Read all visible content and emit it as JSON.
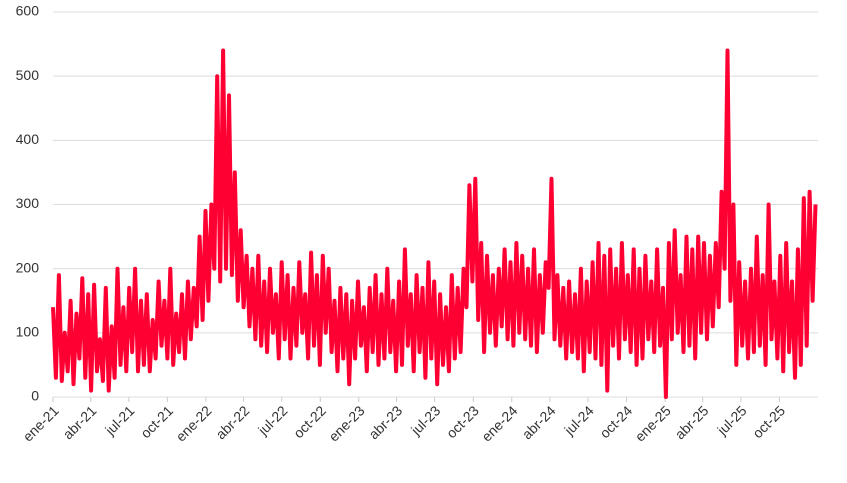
{
  "chart_data": {
    "type": "line",
    "x": [
      0,
      7,
      14,
      21,
      28,
      35,
      42,
      49,
      56,
      63,
      70,
      77,
      84,
      91,
      98,
      105,
      112,
      119,
      126,
      133,
      140,
      147,
      154,
      161,
      168,
      175,
      182,
      189,
      196,
      203,
      210,
      217,
      224,
      231,
      238,
      245,
      252,
      259,
      266,
      273,
      280,
      287,
      294,
      301,
      308,
      315,
      322,
      329,
      336,
      343,
      350,
      357,
      364,
      371,
      378,
      385,
      392,
      399,
      406,
      413,
      420,
      427,
      434,
      441,
      448,
      455,
      462,
      469,
      476,
      483,
      490,
      497,
      504,
      511,
      518,
      525,
      532,
      539,
      546,
      553,
      560,
      567,
      574,
      581,
      588,
      595,
      602,
      609,
      616,
      623,
      630,
      637,
      644,
      651,
      658,
      665,
      672,
      679,
      686,
      693,
      700,
      707,
      714,
      721,
      728,
      735,
      742,
      749,
      756,
      763,
      770,
      777,
      784,
      791,
      798,
      805,
      812,
      819,
      826,
      833,
      840,
      847,
      854,
      861,
      868,
      875,
      882,
      889,
      896,
      903,
      910,
      917,
      924,
      931,
      938,
      945,
      952,
      959,
      966,
      973,
      980,
      987,
      994,
      1001,
      1008,
      1015,
      1022,
      1029,
      1036,
      1043,
      1050,
      1057,
      1064,
      1071,
      1078,
      1085,
      1092,
      1099,
      1106,
      1113,
      1120,
      1127,
      1134,
      1141,
      1148,
      1155,
      1162,
      1169,
      1176,
      1183,
      1190,
      1197,
      1204,
      1211,
      1218,
      1225,
      1232,
      1239,
      1246,
      1253,
      1260,
      1267,
      1274,
      1281,
      1288,
      1295,
      1302,
      1309,
      1316,
      1323,
      1330,
      1337,
      1344,
      1351,
      1358,
      1365,
      1372,
      1379,
      1386,
      1393,
      1400,
      1407,
      1414,
      1421,
      1428,
      1435,
      1442,
      1449,
      1456,
      1463,
      1470,
      1477,
      1484,
      1491,
      1498,
      1505,
      1512,
      1519,
      1526,
      1533,
      1540,
      1547,
      1554,
      1561,
      1568,
      1575,
      1582,
      1589,
      1596,
      1603,
      1610,
      1617,
      1624,
      1631,
      1638,
      1645,
      1652,
      1659,
      1666,
      1673,
      1680,
      1687,
      1694,
      1701,
      1708,
      1715,
      1722,
      1729,
      1736,
      1743,
      1750,
      1757,
      1764,
      1771,
      1778,
      1785,
      1792,
      1799,
      1806,
      1813,
      1820
    ],
    "series": [
      {
        "color": "#ff0033",
        "values": [
          140,
          30,
          190,
          25,
          100,
          40,
          150,
          20,
          130,
          60,
          185,
          30,
          160,
          10,
          175,
          40,
          90,
          25,
          170,
          10,
          110,
          30,
          200,
          50,
          140,
          40,
          170,
          70,
          200,
          40,
          150,
          50,
          160,
          40,
          120,
          60,
          180,
          80,
          150,
          60,
          200,
          50,
          130,
          70,
          160,
          60,
          180,
          90,
          170,
          110,
          250,
          120,
          290,
          150,
          300,
          200,
          500,
          180,
          540,
          200,
          470,
          190,
          350,
          150,
          260,
          140,
          220,
          110,
          200,
          90,
          220,
          80,
          180,
          70,
          200,
          100,
          160,
          60,
          210,
          90,
          190,
          60,
          170,
          80,
          210,
          100,
          160,
          60,
          225,
          80,
          190,
          50,
          220,
          100,
          200,
          70,
          150,
          40,
          170,
          60,
          160,
          20,
          150,
          60,
          180,
          80,
          140,
          40,
          170,
          70,
          190,
          50,
          160,
          60,
          200,
          70,
          150,
          40,
          180,
          50,
          230,
          80,
          160,
          40,
          190,
          70,
          170,
          30,
          210,
          60,
          180,
          20,
          160,
          50,
          140,
          40,
          190,
          60,
          170,
          70,
          200,
          140,
          330,
          180,
          340,
          120,
          240,
          70,
          220,
          100,
          190,
          80,
          200,
          110,
          230,
          90,
          210,
          80,
          240,
          100,
          220,
          90,
          200,
          80,
          230,
          70,
          190,
          100,
          210,
          170,
          340,
          90,
          190,
          80,
          170,
          60,
          180,
          70,
          160,
          60,
          200,
          40,
          180,
          70,
          210,
          60,
          240,
          50,
          220,
          10,
          230,
          80,
          200,
          60,
          240,
          90,
          190,
          70,
          230,
          50,
          200,
          60,
          220,
          90,
          180,
          70,
          230,
          80,
          170,
          0,
          240,
          90,
          260,
          100,
          190,
          70,
          250,
          80,
          230,
          60,
          250,
          100,
          240,
          90,
          220,
          110,
          240,
          140,
          320,
          200,
          540,
          150,
          300,
          50,
          210,
          80,
          180,
          60,
          200,
          70,
          250,
          80,
          190,
          50,
          300,
          90,
          180,
          60,
          220,
          40,
          240,
          70,
          180,
          30,
          230,
          50,
          310,
          80,
          320,
          150,
          300
        ]
      }
    ],
    "xlim": [
      0,
      1826
    ],
    "xticks": [
      {
        "value": 0,
        "label": "ene-21"
      },
      {
        "value": 90,
        "label": "abr-21"
      },
      {
        "value": 181,
        "label": "jul-21"
      },
      {
        "value": 273,
        "label": "oct-21"
      },
      {
        "value": 365,
        "label": "ene-22"
      },
      {
        "value": 455,
        "label": "abr-22"
      },
      {
        "value": 546,
        "label": "jul-22"
      },
      {
        "value": 638,
        "label": "oct-22"
      },
      {
        "value": 730,
        "label": "ene-23"
      },
      {
        "value": 820,
        "label": "abr-23"
      },
      {
        "value": 911,
        "label": "jul-23"
      },
      {
        "value": 1003,
        "label": "oct-23"
      },
      {
        "value": 1095,
        "label": "ene-24"
      },
      {
        "value": 1186,
        "label": "abr-24"
      },
      {
        "value": 1277,
        "label": "jul-24"
      },
      {
        "value": 1369,
        "label": "oct-24"
      },
      {
        "value": 1461,
        "label": "ene-25"
      },
      {
        "value": 1551,
        "label": "abr-25"
      },
      {
        "value": 1642,
        "label": "jul-25"
      },
      {
        "value": 1734,
        "label": "oct-25"
      }
    ],
    "ylim": [
      0,
      600
    ],
    "yticks": [
      0,
      100,
      200,
      300,
      400,
      500,
      600
    ],
    "grid": true
  }
}
